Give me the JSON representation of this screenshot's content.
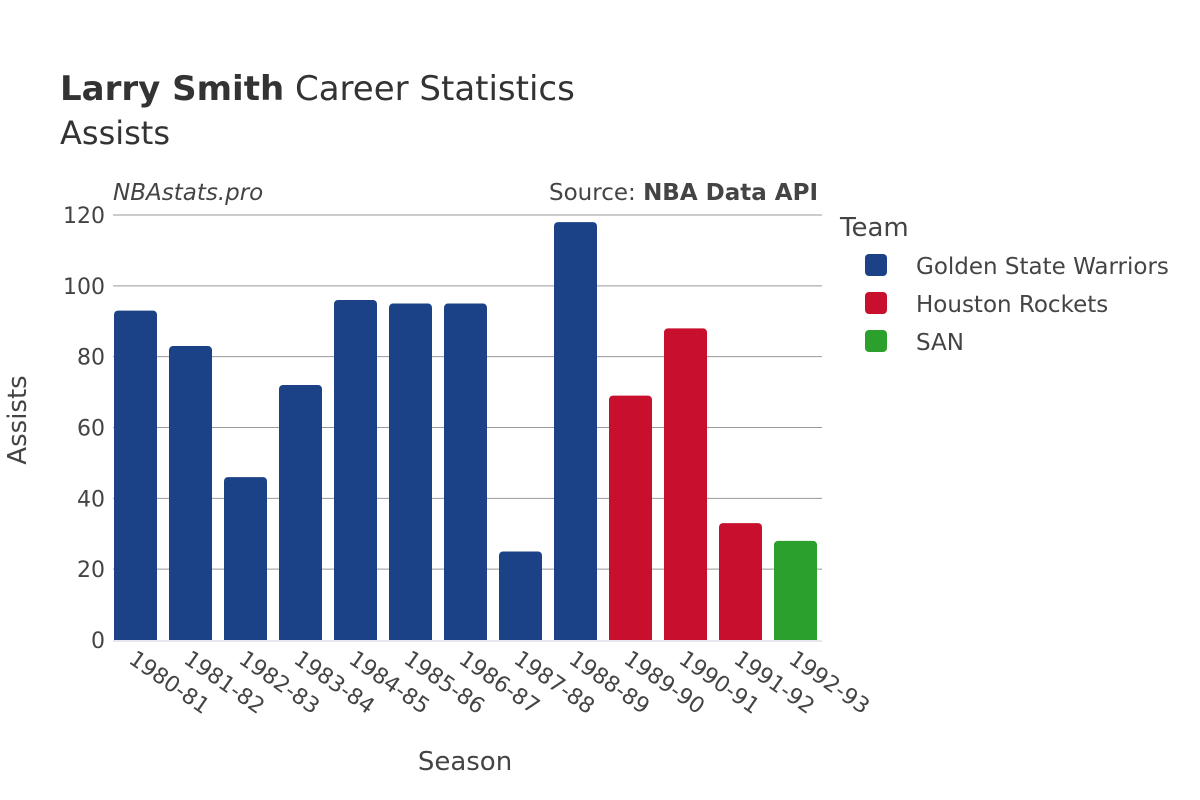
{
  "title": {
    "player": "Larry Smith",
    "rest": " Career Statistics",
    "subtitle": "Assists"
  },
  "watermark": "NBAstats.pro",
  "source": {
    "prefix": "Source: ",
    "name": "NBA Data API"
  },
  "legend_title": "Team",
  "colors": {
    "Golden State Warriors": "#1b4186",
    "Houston Rockets": "#c8102e",
    "SAN": "#2ca02c"
  },
  "chart_data": {
    "type": "bar",
    "xlabel": "Season",
    "ylabel": "Assists",
    "ylim": [
      0,
      120
    ],
    "yticks": [
      0,
      20,
      40,
      60,
      80,
      100,
      120
    ],
    "grid": true,
    "legend_placement": "right",
    "categories": [
      "1980-81",
      "1981-82",
      "1982-83",
      "1983-84",
      "1984-85",
      "1985-86",
      "1986-87",
      "1987-88",
      "1988-89",
      "1989-90",
      "1990-91",
      "1991-92",
      "1992-93"
    ],
    "series": [
      {
        "name": "Golden State Warriors",
        "values": [
          93,
          83,
          46,
          72,
          96,
          95,
          95,
          25,
          118,
          null,
          null,
          null,
          null
        ]
      },
      {
        "name": "Houston Rockets",
        "values": [
          null,
          null,
          null,
          null,
          null,
          null,
          null,
          null,
          null,
          69,
          88,
          33,
          null
        ]
      },
      {
        "name": "SAN",
        "values": [
          null,
          null,
          null,
          null,
          null,
          null,
          null,
          null,
          null,
          null,
          null,
          null,
          28
        ]
      }
    ]
  }
}
